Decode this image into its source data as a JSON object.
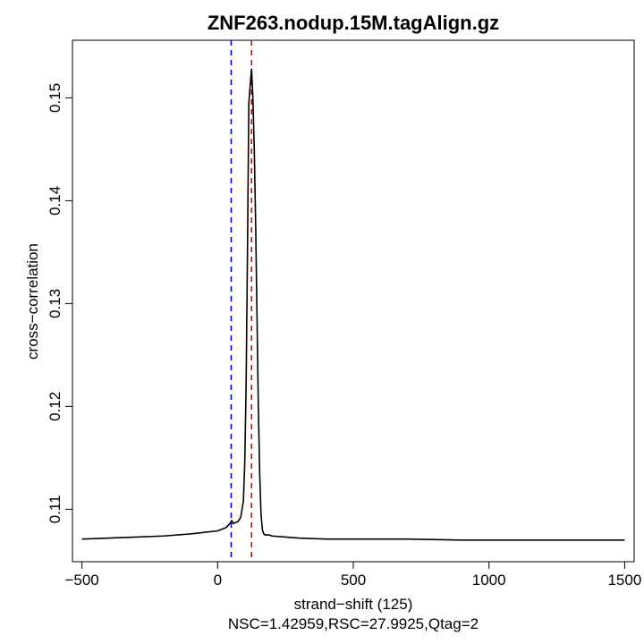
{
  "chart_data": {
    "type": "line",
    "title": "ZNF263.nodup.15M.tagAlign.gz",
    "xlabel": "strand−shift (125)",
    "ylabel": "cross−correlation",
    "subtitle": "NSC=1.42959,RSC=27.9925,Qtag=2",
    "xlim": [
      -535,
      1535
    ],
    "ylim": [
      0.1049,
      0.1556
    ],
    "x_ticks": [
      -500,
      0,
      500,
      1000,
      1500
    ],
    "x_tick_labels": [
      "−500",
      "0",
      "500",
      "1000",
      "1500"
    ],
    "y_ticks": [
      0.11,
      0.12,
      0.13,
      0.14,
      0.15
    ],
    "y_tick_labels": [
      "0.11",
      "0.12",
      "0.13",
      "0.14",
      "0.15"
    ],
    "series": [
      {
        "color": "#000000",
        "x": [
          -500,
          -400,
          -300,
          -200,
          -100,
          0,
          30,
          45,
          52,
          58,
          65,
          75,
          85,
          95,
          100,
          105,
          110,
          115,
          120,
          125,
          130,
          135,
          140,
          145,
          150,
          155,
          160,
          165,
          170,
          175,
          180,
          190,
          200,
          250,
          300,
          400,
          500,
          700,
          900,
          1100,
          1300,
          1500
        ],
        "y": [
          0.1071,
          0.1072,
          0.1073,
          0.1074,
          0.1076,
          0.1079,
          0.1082,
          0.1086,
          0.1089,
          0.1086,
          0.1087,
          0.1088,
          0.1092,
          0.1108,
          0.1145,
          0.122,
          0.135,
          0.1495,
          0.1512,
          0.1528,
          0.15,
          0.145,
          0.138,
          0.129,
          0.12,
          0.1135,
          0.1095,
          0.108,
          0.1076,
          0.1075,
          0.1075,
          0.1075,
          0.1074,
          0.1073,
          0.1072,
          0.1071,
          0.1071,
          0.1071,
          0.107,
          0.107,
          0.107,
          0.107
        ]
      }
    ],
    "vlines": [
      {
        "x": 50,
        "color": "#0000cc",
        "style": "dashed"
      },
      {
        "x": 125,
        "color": "#dd0000",
        "style": "dashed"
      }
    ],
    "grid": false,
    "legend": "none"
  }
}
